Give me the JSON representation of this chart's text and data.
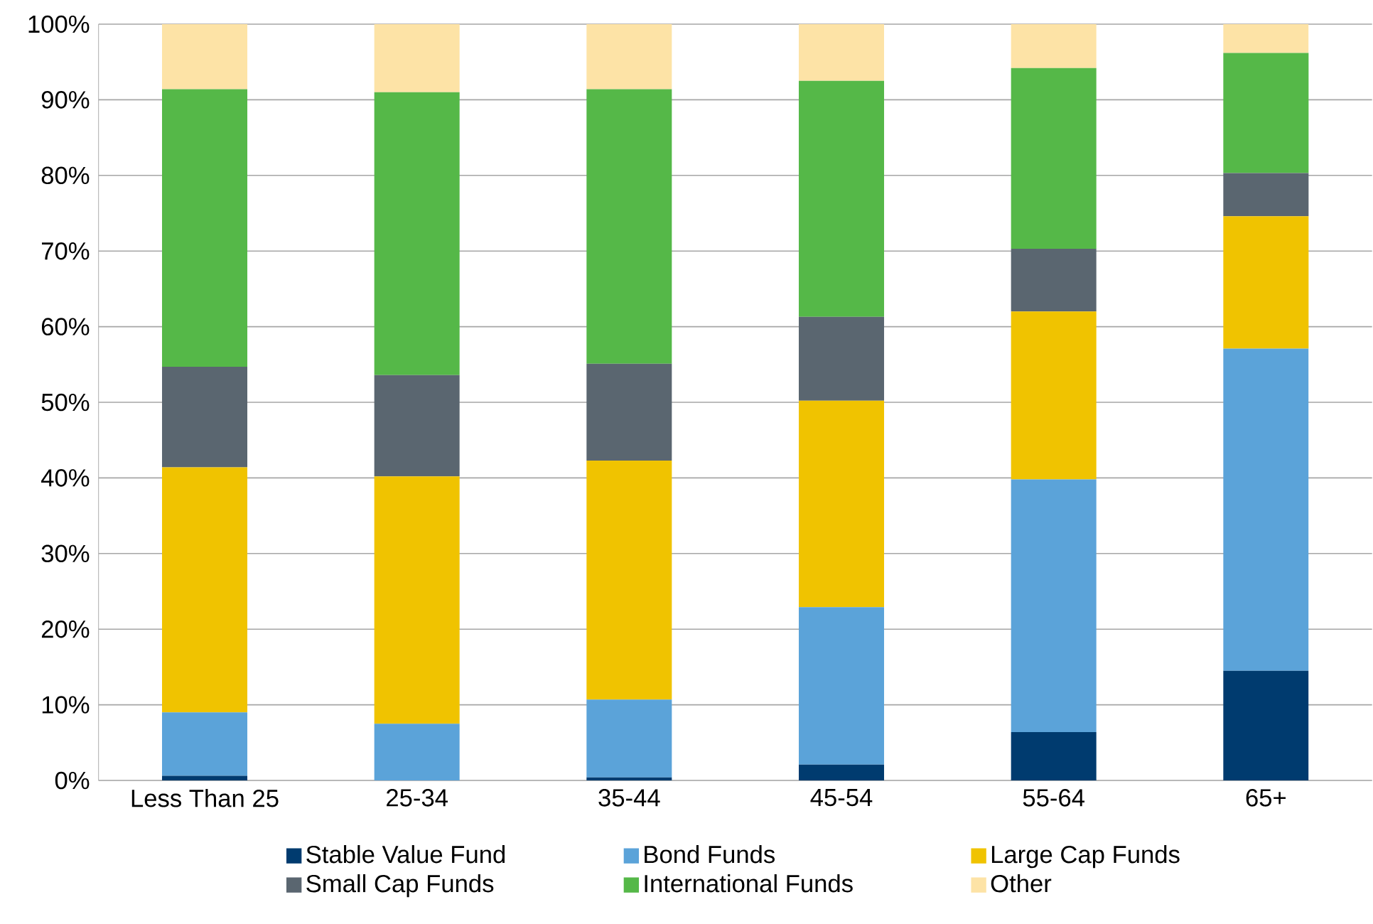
{
  "chart_data": {
    "type": "bar",
    "stacked": true,
    "categories": [
      "Less Than 25",
      "25-34",
      "35-44",
      "45-54",
      "55-64",
      "65+"
    ],
    "series": [
      {
        "name": "Stable Value Fund",
        "color": "#003b6f",
        "values": [
          0.6,
          0,
          0.4,
          2.1,
          6.4,
          14.5
        ]
      },
      {
        "name": "Bond Funds",
        "color": "#5ba3d9",
        "values": [
          8.4,
          7.5,
          10.3,
          20.8,
          33.4,
          42.6
        ]
      },
      {
        "name": "Large Cap Funds",
        "color": "#f0c300",
        "values": [
          32.4,
          32.7,
          31.6,
          27.3,
          22.2,
          17.5
        ]
      },
      {
        "name": "Small Cap Funds",
        "color": "#5a6670",
        "values": [
          13.3,
          13.4,
          12.8,
          11.1,
          8.3,
          5.7
        ]
      },
      {
        "name": "International Funds",
        "color": "#55b848",
        "values": [
          36.7,
          37.4,
          36.3,
          31.2,
          23.9,
          15.9
        ]
      },
      {
        "name": "Other",
        "color": "#fde3a6",
        "values": [
          8.6,
          9.0,
          8.6,
          7.5,
          5.8,
          3.8
        ]
      }
    ],
    "ylim": [
      0,
      100
    ],
    "yticks": [
      {
        "value": 0,
        "label": "0%"
      },
      {
        "value": 10,
        "label": "10%"
      },
      {
        "value": 20,
        "label": "20%"
      },
      {
        "value": 30,
        "label": "30%"
      },
      {
        "value": 40,
        "label": "40%"
      },
      {
        "value": 50,
        "label": "50%"
      },
      {
        "value": 60,
        "label": "60%"
      },
      {
        "value": 70,
        "label": "70%"
      },
      {
        "value": 80,
        "label": "80%"
      },
      {
        "value": 90,
        "label": "90%"
      },
      {
        "value": 100,
        "label": "100%"
      }
    ],
    "grid": "y",
    "legend": "bottom"
  }
}
